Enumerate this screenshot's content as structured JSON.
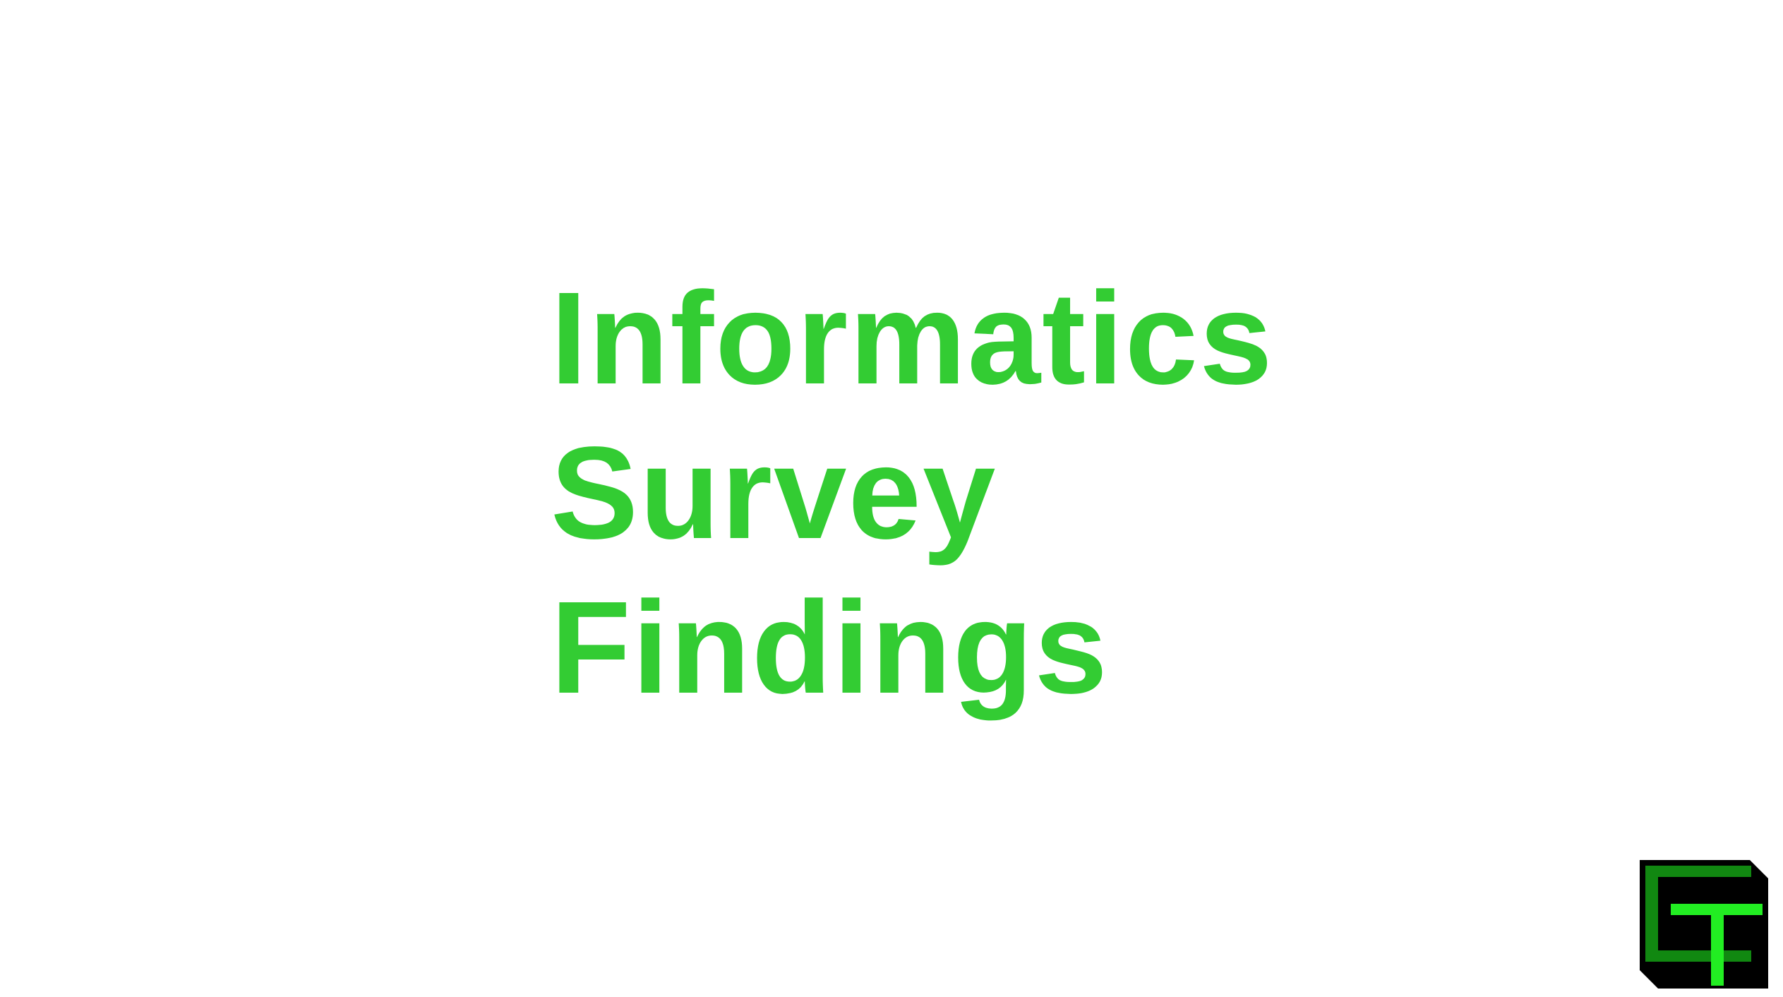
{
  "slide": {
    "title_lines": [
      "Informatics",
      "Survey",
      "Findings"
    ]
  },
  "logo": {
    "icon": "ct-logo-icon",
    "letters": "CT"
  },
  "colors": {
    "background": "#ffffff",
    "title_text": "#33cc33",
    "logo_background": "#000000",
    "logo_c": "#118811",
    "logo_t": "#22ee22"
  }
}
